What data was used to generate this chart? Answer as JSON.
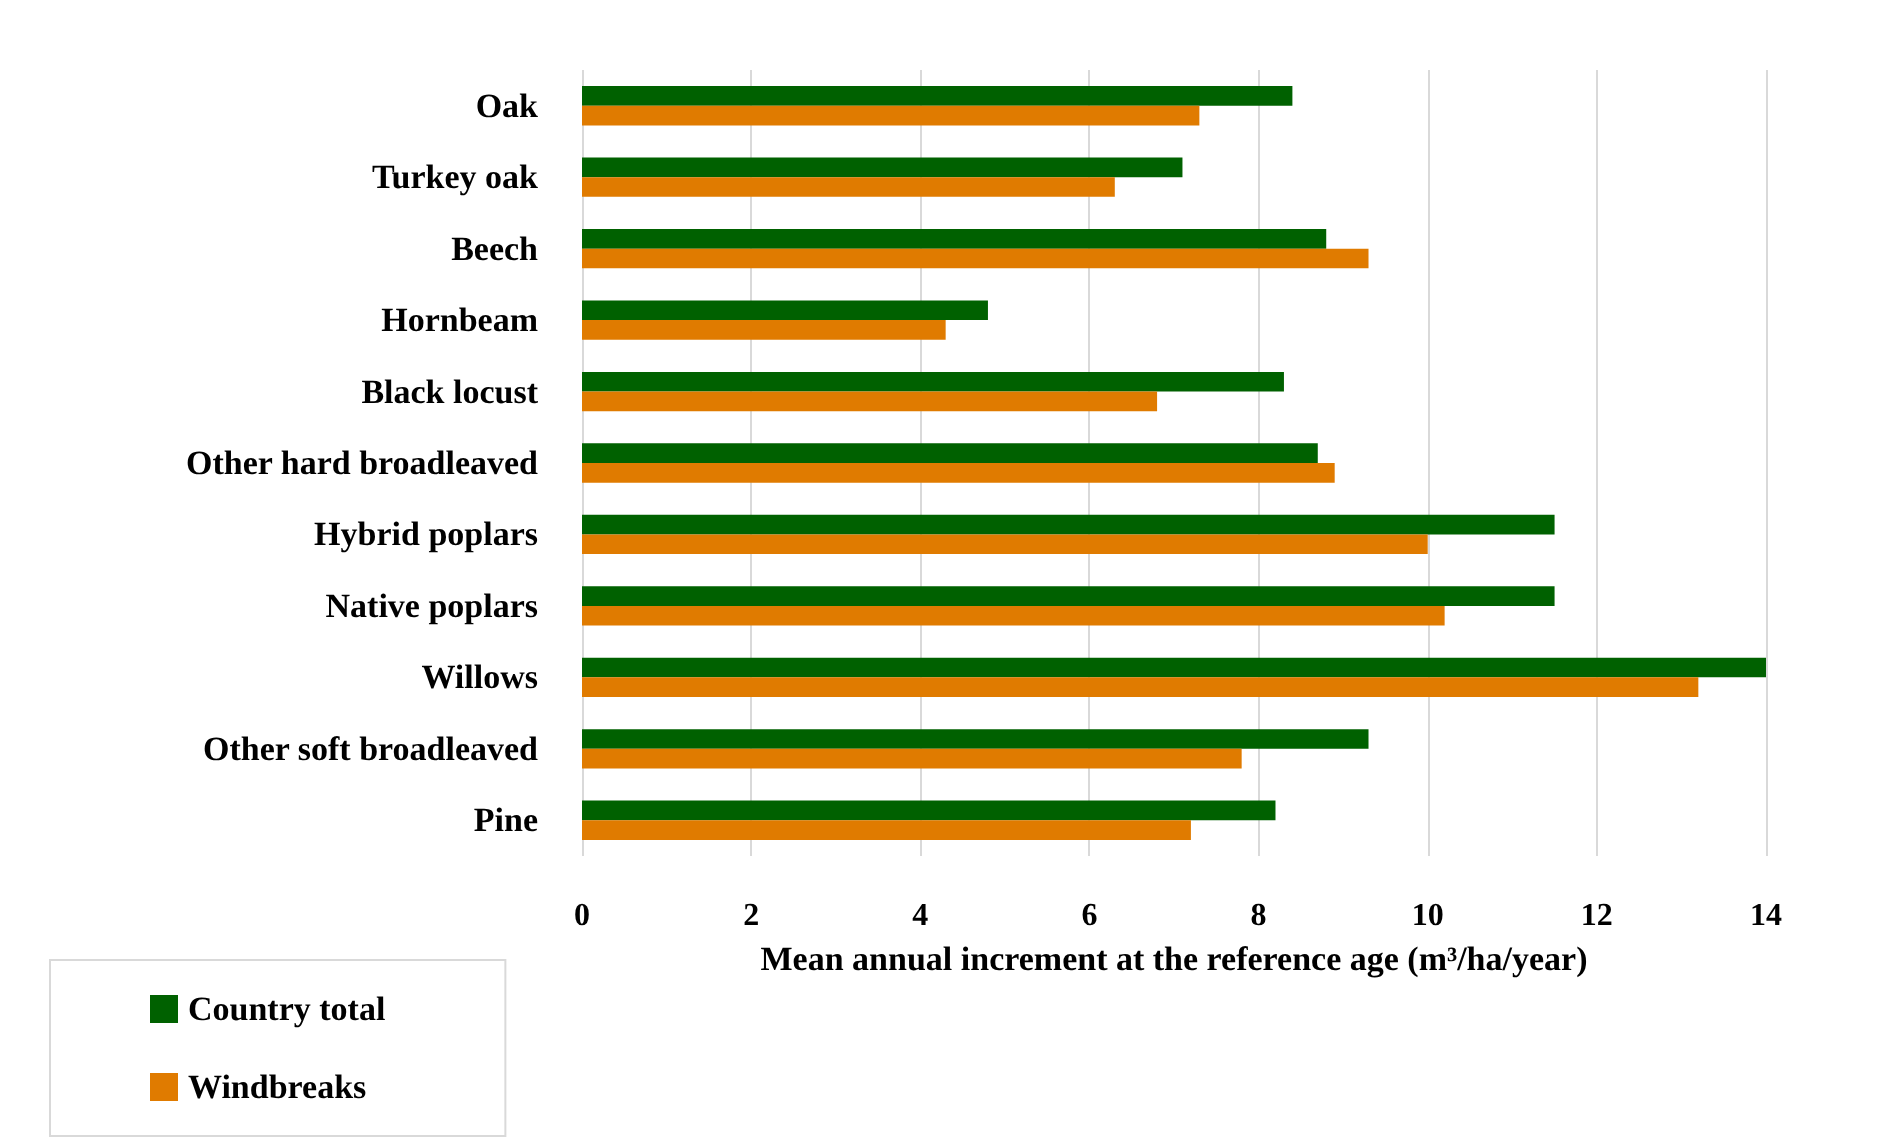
{
  "chart_data": {
    "type": "bar",
    "orientation": "horizontal",
    "categories": [
      "Oak",
      "Turkey oak",
      "Beech",
      "Hornbeam",
      "Black locust",
      "Other hard broadleaved",
      "Hybrid poplars",
      "Native poplars",
      "Willows",
      "Other soft broadleaved",
      "Pine"
    ],
    "series": [
      {
        "name": "Country total",
        "color": "#006100",
        "values": [
          8.4,
          7.1,
          8.8,
          4.8,
          8.3,
          8.7,
          11.5,
          11.5,
          14.0,
          9.3,
          8.2
        ]
      },
      {
        "name": "Windbreaks",
        "color": "#e07b00",
        "values": [
          7.3,
          6.3,
          9.3,
          4.3,
          6.8,
          8.9,
          10.0,
          10.2,
          13.2,
          7.8,
          7.2
        ]
      }
    ],
    "xlabel": "Mean annual increment at the reference age (m³/ha/year)",
    "xlim": [
      0,
      14
    ],
    "xticks": [
      0,
      2,
      4,
      6,
      8,
      10,
      12,
      14
    ],
    "grid": "x",
    "legend": "bottom left"
  }
}
